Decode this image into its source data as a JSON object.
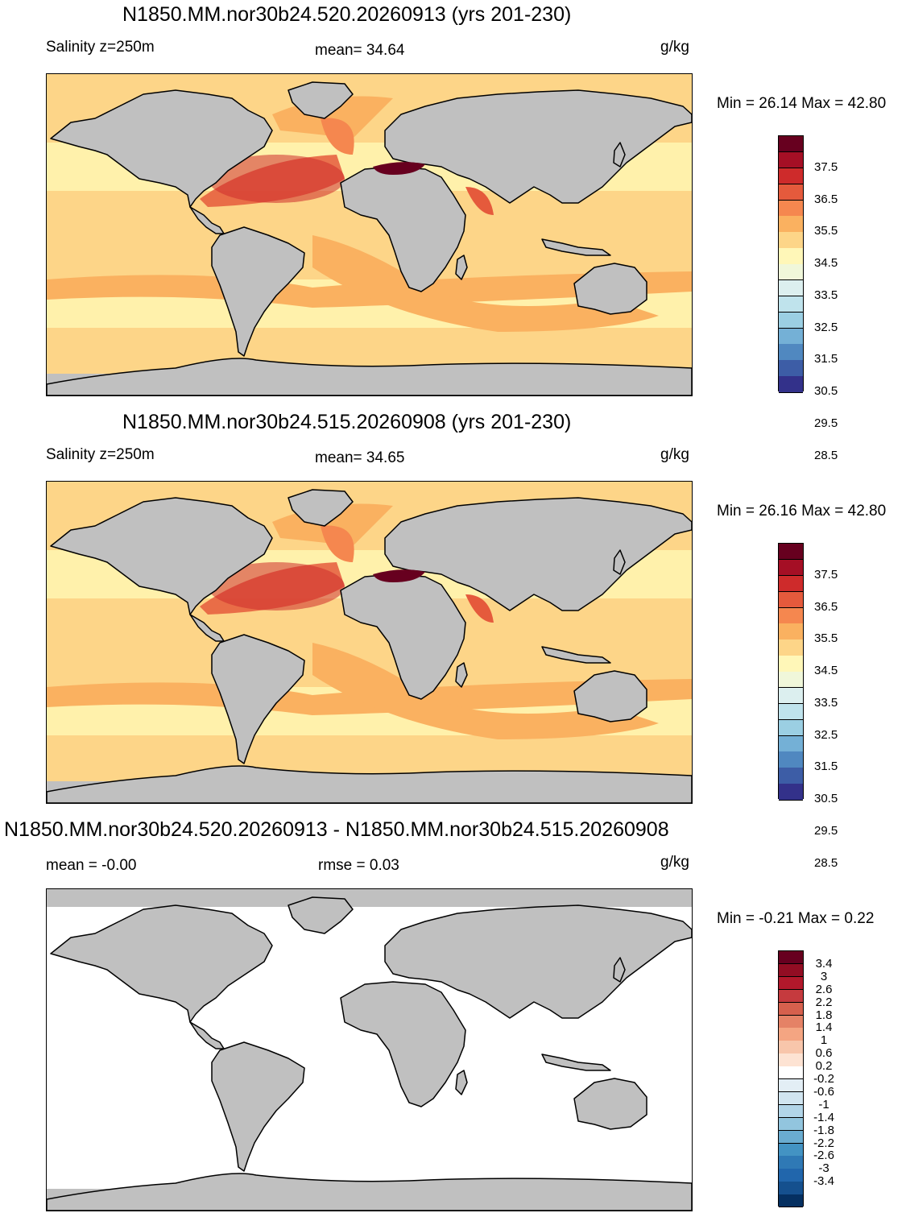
{
  "panels": [
    {
      "title": "N1850.MM.nor30b24.520.20260913 (yrs 201-230)",
      "left_label": "Salinity z=250m",
      "center_label": "mean=  34.64",
      "units": "g/kg",
      "minmax": "Min =  26.14 Max =  42.80",
      "field_stats": {
        "mean": 34.64,
        "min": 26.14,
        "max": 42.8
      },
      "colorbar": {
        "levels": [
          "37.5",
          "36.5",
          "35.5",
          "34.5",
          "33.5",
          "32.5",
          "31.5",
          "30.5",
          "29.5",
          "28.5"
        ],
        "colors": [
          "#67001f",
          "#a50f25",
          "#ce2b2b",
          "#e55a3c",
          "#f5874f",
          "#fab160",
          "#fdd588",
          "#fff7b8",
          "#f0f7da",
          "#dcefef",
          "#bfe3ec",
          "#9bcfe3",
          "#74b0d6",
          "#5088c0",
          "#3d5da6",
          "#33318a"
        ]
      }
    },
    {
      "title": "N1850.MM.nor30b24.515.20260908 (yrs 201-230)",
      "left_label": "Salinity z=250m",
      "center_label": "mean=  34.65",
      "units": "g/kg",
      "minmax": "Min =  26.16 Max =  42.80",
      "field_stats": {
        "mean": 34.65,
        "min": 26.16,
        "max": 42.8
      },
      "colorbar": {
        "levels": [
          "37.5",
          "36.5",
          "35.5",
          "34.5",
          "33.5",
          "32.5",
          "31.5",
          "30.5",
          "29.5",
          "28.5"
        ],
        "colors": [
          "#67001f",
          "#a50f25",
          "#ce2b2b",
          "#e55a3c",
          "#f5874f",
          "#fab160",
          "#fdd588",
          "#fff7b8",
          "#f0f7da",
          "#dcefef",
          "#bfe3ec",
          "#9bcfe3",
          "#74b0d6",
          "#5088c0",
          "#3d5da6",
          "#33318a"
        ]
      }
    },
    {
      "title": "N1850.MM.nor30b24.520.20260913 - N1850.MM.nor30b24.515.20260908",
      "left_label": "mean =  -0.00",
      "center_label": "rmse =    0.03",
      "units": "g/kg",
      "minmax": "Min =  -0.21 Max =   0.22",
      "field_stats": {
        "mean": -0.0,
        "rmse": 0.03,
        "min": -0.21,
        "max": 0.22
      },
      "colorbar": {
        "levels": [
          "3.4",
          "3",
          "2.6",
          "2.2",
          "1.8",
          "1.4",
          "1",
          "0.6",
          "0.2",
          "-0.2",
          "-0.6",
          "-1",
          "-1.4",
          "-1.8",
          "-2.2",
          "-2.6",
          "-3",
          "-3.4"
        ],
        "colors": [
          "#67001f",
          "#920d23",
          "#b2182b",
          "#c53a3e",
          "#d6604d",
          "#e58266",
          "#f4a582",
          "#f8c6ab",
          "#fde3d3",
          "#ffffff",
          "#e3eef5",
          "#d1e5f0",
          "#b2d5e8",
          "#92c5de",
          "#6aacd0",
          "#4393c3",
          "#2f79b5",
          "#2166ac",
          "#15508e",
          "#053061"
        ]
      }
    }
  ],
  "map": {
    "land_color": "#c0c0c0",
    "coast_color": "#000000"
  }
}
